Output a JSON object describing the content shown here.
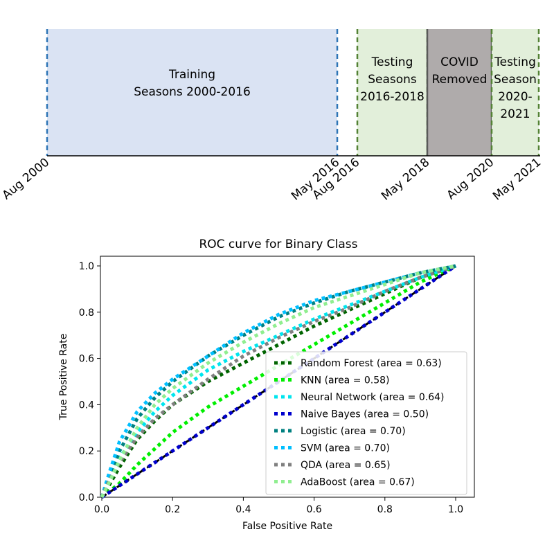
{
  "timeline": {
    "periods": [
      {
        "lines": [
          "Training",
          "Seasons 2000-2016"
        ],
        "fill": "#dae3f3",
        "border": "#2e75b6",
        "start": "Aug 2000",
        "end": "May 2016"
      },
      {
        "lines": [
          "Testing",
          "Seasons",
          "2016-2018"
        ],
        "fill": "#e2efda",
        "border": "#548235",
        "start": "Aug 2016",
        "end": "May 2018"
      },
      {
        "lines": [
          "COVID",
          "Removed"
        ],
        "fill": "#afabab",
        "border": "#595959",
        "start": "May 2018",
        "end": "Aug 2020"
      },
      {
        "lines": [
          "Testing",
          "Season",
          "2020-",
          "2021"
        ],
        "fill": "#e2efda",
        "border": "#548235",
        "start": "Aug 2020",
        "end": "May 2021"
      }
    ],
    "dates": [
      "Aug 2000",
      "May 2016",
      "Aug 2016",
      "May 2018",
      "Aug 2020",
      "May 2021"
    ]
  },
  "chart_data": {
    "type": "line",
    "title": "ROC curve for Binary Class",
    "xlabel": "False Positive Rate",
    "ylabel": "True Positive Rate",
    "xlim": [
      0,
      1
    ],
    "ylim": [
      0,
      1
    ],
    "xticks": [
      "0.0",
      "0.2",
      "0.4",
      "0.6",
      "0.8",
      "1.0"
    ],
    "yticks": [
      "0.0",
      "0.2",
      "0.4",
      "0.6",
      "0.8",
      "1.0"
    ],
    "grid": false,
    "legend_position": "lower-right",
    "reference_line": {
      "x": [
        0,
        1
      ],
      "y": [
        0,
        1
      ],
      "color": "#000000"
    },
    "series": [
      {
        "name": "Random Forest (area = 0.63)",
        "color": "#006400",
        "x": [
          0,
          0.02,
          0.05,
          0.1,
          0.15,
          0.2,
          0.3,
          0.4,
          0.5,
          0.6,
          0.7,
          0.8,
          0.9,
          1.0
        ],
        "y": [
          0,
          0.05,
          0.13,
          0.25,
          0.33,
          0.4,
          0.5,
          0.58,
          0.66,
          0.74,
          0.81,
          0.88,
          0.95,
          1.0
        ]
      },
      {
        "name": "KNN (area = 0.58)",
        "color": "#00ee00",
        "x": [
          0,
          0.05,
          0.1,
          0.2,
          0.3,
          0.4,
          0.5,
          0.6,
          0.7,
          0.8,
          0.9,
          1.0
        ],
        "y": [
          0,
          0.06,
          0.14,
          0.28,
          0.39,
          0.48,
          0.57,
          0.66,
          0.75,
          0.84,
          0.93,
          1.0
        ]
      },
      {
        "name": "Neural Network (area = 0.64)",
        "color": "#00e5ee",
        "x": [
          0,
          0.02,
          0.05,
          0.1,
          0.15,
          0.2,
          0.3,
          0.4,
          0.5,
          0.6,
          0.7,
          0.8,
          0.9,
          1.0
        ],
        "y": [
          0,
          0.07,
          0.17,
          0.28,
          0.37,
          0.44,
          0.55,
          0.63,
          0.7,
          0.77,
          0.83,
          0.89,
          0.95,
          1.0
        ]
      },
      {
        "name": "Naive Bayes (area = 0.50)",
        "color": "#0000cd",
        "x": [
          0,
          0.2,
          0.4,
          0.6,
          0.8,
          1.0
        ],
        "y": [
          0,
          0.2,
          0.4,
          0.6,
          0.8,
          1.0
        ]
      },
      {
        "name": "Logistic (area = 0.70)",
        "color": "#008080",
        "x": [
          0,
          0.02,
          0.05,
          0.1,
          0.15,
          0.2,
          0.3,
          0.4,
          0.5,
          0.6,
          0.7,
          0.8,
          0.9,
          1.0
        ],
        "y": [
          0,
          0.08,
          0.2,
          0.34,
          0.43,
          0.5,
          0.61,
          0.7,
          0.78,
          0.84,
          0.89,
          0.93,
          0.97,
          1.0
        ]
      },
      {
        "name": "SVM (area = 0.70)",
        "color": "#00bfff",
        "x": [
          0,
          0.02,
          0.05,
          0.1,
          0.15,
          0.2,
          0.3,
          0.4,
          0.5,
          0.6,
          0.7,
          0.8,
          0.9,
          1.0
        ],
        "y": [
          0,
          0.1,
          0.24,
          0.37,
          0.45,
          0.51,
          0.61,
          0.71,
          0.79,
          0.85,
          0.89,
          0.93,
          0.97,
          1.0
        ]
      },
      {
        "name": "QDA (area = 0.65)",
        "color": "#808080",
        "x": [
          0,
          0.02,
          0.05,
          0.1,
          0.15,
          0.2,
          0.3,
          0.4,
          0.5,
          0.6,
          0.7,
          0.8,
          0.9,
          1.0
        ],
        "y": [
          0,
          0.07,
          0.15,
          0.26,
          0.34,
          0.4,
          0.51,
          0.61,
          0.69,
          0.76,
          0.82,
          0.89,
          0.95,
          1.0
        ]
      },
      {
        "name": "AdaBoost (area = 0.67)",
        "color": "#90ee90",
        "x": [
          0,
          0.02,
          0.05,
          0.1,
          0.15,
          0.2,
          0.3,
          0.4,
          0.5,
          0.6,
          0.7,
          0.8,
          0.9,
          1.0
        ],
        "y": [
          0,
          0.06,
          0.16,
          0.3,
          0.4,
          0.47,
          0.58,
          0.67,
          0.75,
          0.82,
          0.87,
          0.92,
          0.97,
          1.0
        ]
      }
    ]
  }
}
